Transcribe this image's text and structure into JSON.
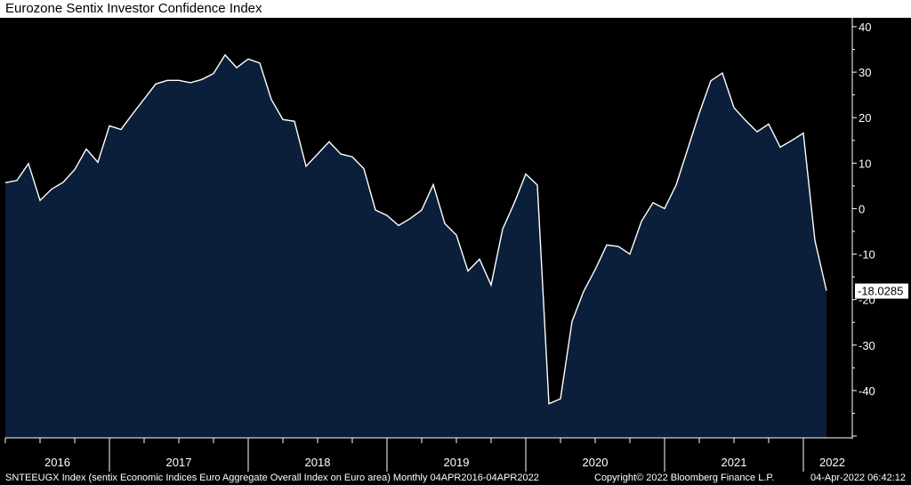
{
  "chart_data": {
    "type": "area",
    "title": "Eurozone Sentix Investor Confidence Index",
    "series": [
      {
        "values": [
          5.7,
          6.2,
          9.9,
          1.8,
          4.3,
          5.8,
          8.6,
          13.1,
          10.2,
          18.2,
          17.4,
          20.8,
          24.1,
          27.4,
          28.2,
          28.2,
          27.7,
          28.4,
          29.7,
          33.8,
          31.0,
          32.9,
          32.0,
          24.0,
          19.6,
          19.2,
          9.3,
          12.0,
          14.7,
          12.0,
          11.4,
          8.8,
          -0.3,
          -1.5,
          -3.7,
          -2.2,
          -0.3,
          5.3,
          -3.3,
          -5.8,
          -13.7,
          -11.1,
          -16.8,
          -4.5,
          1.2,
          7.6,
          5.2,
          -42.9,
          -41.8,
          -24.8,
          -18.2,
          -13.4,
          -8.0,
          -8.3,
          -10.0,
          -2.8,
          1.3,
          0.0,
          5.2,
          13.1,
          21.0,
          28.1,
          29.8,
          22.2,
          19.4,
          16.9,
          18.6,
          13.5,
          15.0,
          16.6,
          -7.0,
          -18.0285
        ]
      }
    ],
    "x_start": "2016-04",
    "frequency": "monthly",
    "x_ticks": [
      "2016",
      "2017",
      "2018",
      "2019",
      "2020",
      "2021",
      "2022"
    ],
    "y_ticks": [
      "40",
      "30",
      "20",
      "10",
      "0",
      "-10",
      "-20",
      "-30",
      "-40"
    ],
    "ylim": [
      -50,
      40
    ],
    "grid": false,
    "last_value_label": "-18.0285",
    "colors": {
      "fill": "#0b1f3a",
      "line": "#ffffff",
      "background": "#000000"
    }
  },
  "footer": {
    "ticker": "SNTEEUGX Index (sentix Economic Indices Euro Aggregate  Overall Index on Euro area)  Monthly 04APR2016-04APR2022",
    "copyright": "Copyright© 2022 Bloomberg Finance L.P.",
    "timestamp": "04-Apr-2022 06:42:12"
  }
}
